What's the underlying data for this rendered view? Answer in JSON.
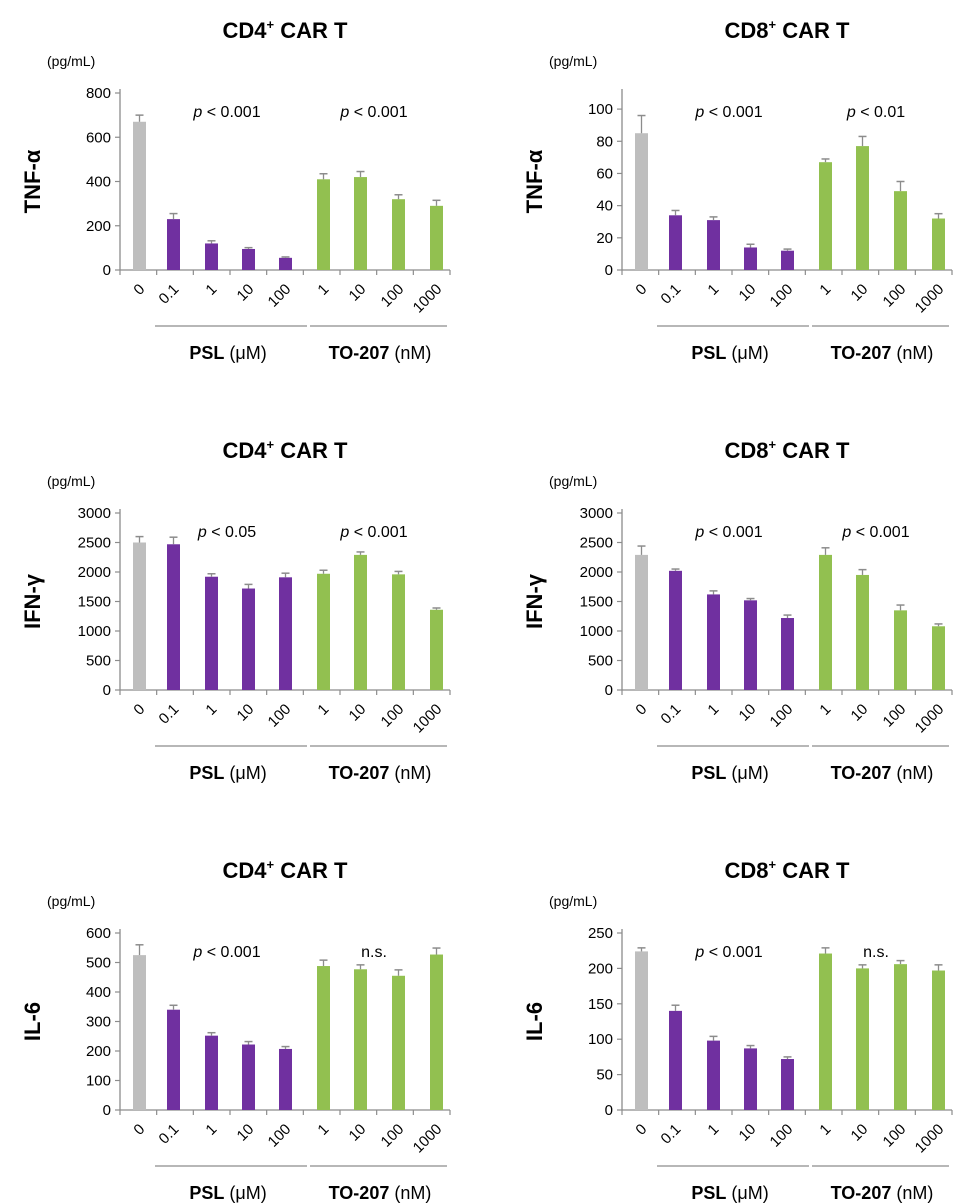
{
  "figure": {
    "colors": {
      "control": "#BEBEBE",
      "psl": "#7030A0",
      "to207": "#92C050",
      "axis": "#8C8C8C",
      "error": "#8C8C8C"
    },
    "categories": [
      "0",
      "0.1",
      "1",
      "10",
      "100",
      "1",
      "10",
      "100",
      "1000"
    ],
    "group_labels": {
      "psl_name": "PSL",
      "psl_unit": "(μM)",
      "to_name": "TO-207",
      "to_unit": "(nM)"
    }
  },
  "chart_data": [
    {
      "type": "bar",
      "title_main": "CD4",
      "title_sup": "+",
      "title_rest": "CAR T",
      "ylabel": "TNF-α",
      "unit_label": "(pg/mL)",
      "ylim": [
        0,
        800
      ],
      "yticks": [
        0,
        200,
        400,
        600,
        800
      ],
      "values": [
        670,
        230,
        120,
        95,
        55,
        410,
        420,
        320,
        290
      ],
      "errors": [
        30,
        25,
        12,
        6,
        4,
        25,
        25,
        20,
        25
      ],
      "annotations": [
        {
          "p": "p",
          "text": " < 0.001"
        },
        {
          "p": "p",
          "text": " < 0.001"
        }
      ]
    },
    {
      "type": "bar",
      "title_main": "CD8",
      "title_sup": "+",
      "title_rest": "CAR T",
      "ylabel": "TNF-α",
      "unit_label": "(pg/mL)",
      "ylim": [
        0,
        110
      ],
      "yticks": [
        0,
        20,
        40,
        60,
        80,
        100
      ],
      "values": [
        85,
        34,
        31,
        14,
        12,
        67,
        77,
        49,
        32
      ],
      "errors": [
        11,
        3,
        2,
        2,
        1,
        2,
        6,
        6,
        3
      ],
      "annotations": [
        {
          "p": "p",
          "text": " < 0.001"
        },
        {
          "p": "p",
          "text": " < 0.01"
        }
      ]
    },
    {
      "type": "bar",
      "title_main": "CD4",
      "title_sup": "+",
      "title_rest": "CAR T",
      "ylabel": "IFN-γ",
      "unit_label": "(pg/mL)",
      "ylim": [
        0,
        3000
      ],
      "yticks": [
        0,
        500,
        1000,
        1500,
        2000,
        2500,
        3000
      ],
      "values": [
        2500,
        2470,
        1920,
        1720,
        1910,
        1970,
        2290,
        1960,
        1360
      ],
      "errors": [
        100,
        120,
        50,
        70,
        70,
        60,
        50,
        50,
        30
      ],
      "annotations": [
        {
          "p": "p",
          "text": " < 0.05"
        },
        {
          "p": "p",
          "text": " < 0.001"
        }
      ]
    },
    {
      "type": "bar",
      "title_main": "CD8",
      "title_sup": "+",
      "title_rest": "CAR T",
      "ylabel": "IFN-γ",
      "unit_label": "(pg/mL)",
      "ylim": [
        0,
        3000
      ],
      "yticks": [
        0,
        500,
        1000,
        1500,
        2000,
        2500,
        3000
      ],
      "values": [
        2290,
        2020,
        1620,
        1520,
        1220,
        2290,
        1950,
        1350,
        1080
      ],
      "errors": [
        150,
        30,
        60,
        30,
        50,
        120,
        90,
        90,
        40
      ],
      "annotations": [
        {
          "p": "p",
          "text": " < 0.001"
        },
        {
          "p": "p",
          "text": " < 0.001"
        }
      ]
    },
    {
      "type": "bar",
      "title_main": "CD4",
      "title_sup": "+",
      "title_rest": "CAR T",
      "ylabel": "IL-6",
      "unit_label": "(pg/mL)",
      "ylim": [
        0,
        600
      ],
      "yticks": [
        0,
        100,
        200,
        300,
        400,
        500,
        600
      ],
      "values": [
        525,
        340,
        252,
        222,
        207,
        488,
        477,
        455,
        527
      ],
      "errors": [
        35,
        15,
        10,
        10,
        8,
        20,
        15,
        20,
        22
      ],
      "annotations": [
        {
          "p": "p",
          "text": " < 0.001"
        },
        {
          "p": "",
          "text": "n.s."
        }
      ]
    },
    {
      "type": "bar",
      "title_main": "CD8",
      "title_sup": "+",
      "title_rest": "CAR T",
      "ylabel": "IL-6",
      "unit_label": "(pg/mL)",
      "ylim": [
        0,
        250
      ],
      "yticks": [
        0,
        50,
        100,
        150,
        200,
        250
      ],
      "values": [
        224,
        140,
        98,
        87,
        72,
        221,
        200,
        206,
        197
      ],
      "errors": [
        5,
        8,
        6,
        4,
        3,
        8,
        5,
        5,
        8
      ],
      "annotations": [
        {
          "p": "p",
          "text": " < 0.001"
        },
        {
          "p": "",
          "text": "n.s."
        }
      ]
    }
  ]
}
